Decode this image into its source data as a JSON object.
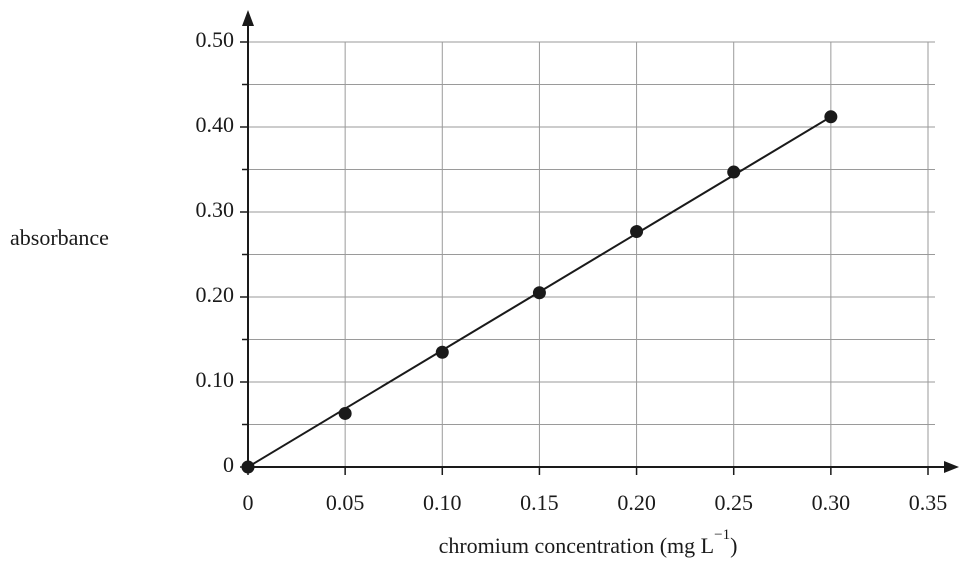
{
  "chart_data": {
    "type": "scatter",
    "xlabel": [
      "chromium concentration (mg L",
      "−1",
      ")"
    ],
    "ylabel": "absorbance",
    "x": [
      0,
      0.05,
      0.1,
      0.15,
      0.2,
      0.25,
      0.3
    ],
    "values": [
      0,
      0.063,
      0.135,
      0.205,
      0.277,
      0.347,
      0.412
    ],
    "color": "#1a1a1a",
    "fit_line": true,
    "xlim": [
      0,
      0.35
    ],
    "ylim": [
      0,
      0.5
    ],
    "xticks": [
      0,
      0.05,
      {
        "value": 0.1,
        "label": "0.10"
      },
      0.15,
      {
        "value": 0.2,
        "label": "0.20"
      },
      0.25,
      {
        "value": 0.3,
        "label": "0.30"
      },
      0.35
    ],
    "yticks": [
      0,
      {
        "value": 0.1,
        "label": "0.10"
      },
      {
        "value": 0.2,
        "label": "0.20"
      },
      {
        "value": 0.3,
        "label": "0.30"
      },
      {
        "value": 0.4,
        "label": "0.40"
      },
      {
        "value": 0.5,
        "label": "0.50"
      }
    ],
    "yminorticks": [
      0.05,
      0.15,
      0.25,
      0.35,
      0.45
    ],
    "grid": true
  }
}
